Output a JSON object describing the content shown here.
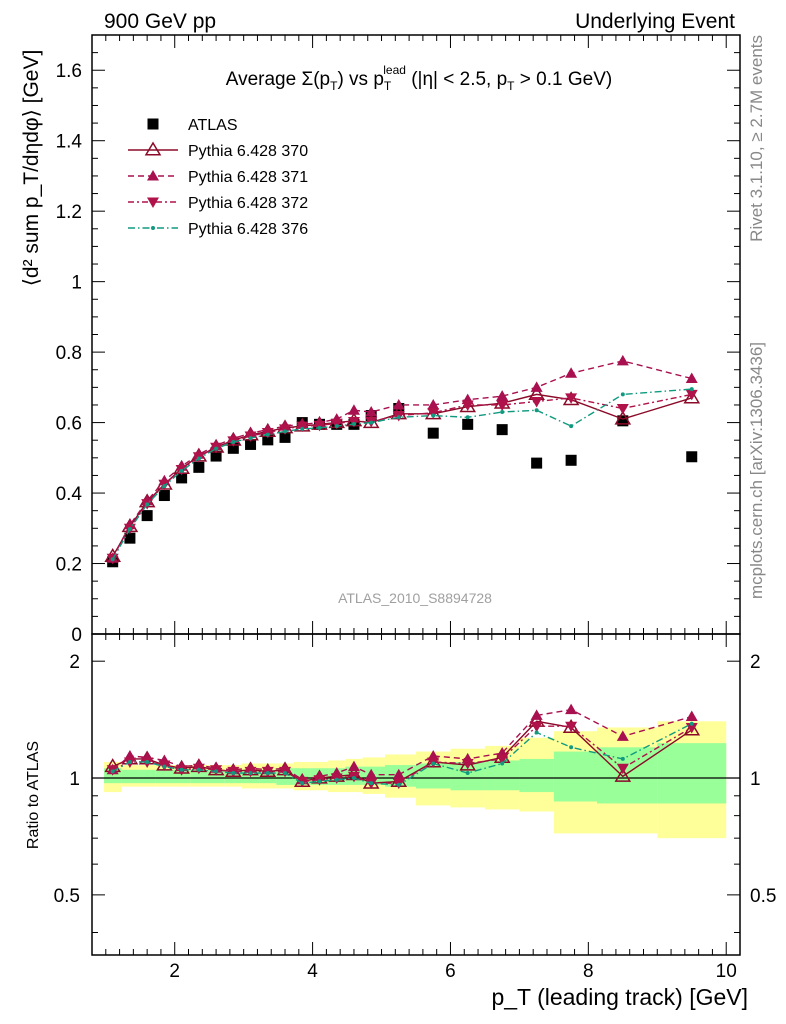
{
  "header": {
    "left": "900 GeV pp",
    "right": "Underlying Event"
  },
  "side": {
    "rivet": "Rivet 3.1.10, ≥ 2.7M events",
    "mcplots": "mcplots.cern.ch [arXiv:1306.3436]"
  },
  "watermark": "ATLAS_2010_S8894728",
  "title": {
    "prefix": "Average ",
    "sigma": "Σ(p",
    "sub_t": "T",
    "mid": ") vs p",
    "sup_lead": "lead",
    "suffix": " (|η| < 2.5, p",
    "suffix_end": " > 0.1 GeV)"
  },
  "ylabel_main": "⟨d² sum p_T/dηdφ⟩ [GeV]",
  "ylabel_ratio": "Ratio to ATLAS",
  "xlabel": "p_T (leading track) [GeV]",
  "colors": {
    "data": "#000000",
    "p370": "#8b0a28",
    "p371": "#a8104f",
    "p372": "#b0124a",
    "p376": "#119a80",
    "band_inner": "#99ff99",
    "band_outer": "#ffff99"
  },
  "chart_data": {
    "type": "scatter",
    "x": [
      1.1,
      1.35,
      1.6,
      1.85,
      2.1,
      2.35,
      2.6,
      2.85,
      3.1,
      3.35,
      3.6,
      3.85,
      4.1,
      4.35,
      4.6,
      4.85,
      5.25,
      5.75,
      6.25,
      6.75,
      7.25,
      7.75,
      8.5,
      9.5
    ],
    "xlim": [
      0.8,
      10.2
    ],
    "xticks": [
      2,
      4,
      6,
      8,
      10
    ],
    "main": {
      "ylim": [
        0,
        1.7
      ],
      "yticks": [
        0,
        0.2,
        0.4,
        0.6,
        0.8,
        1,
        1.2,
        1.4,
        1.6
      ]
    },
    "ratio": {
      "ylim": [
        0.35,
        2.35
      ],
      "yticks": [
        0.5,
        1,
        2
      ]
    },
    "series": [
      {
        "name": "ATLAS",
        "key": "data",
        "marker": "square",
        "values": [
          0.205,
          0.272,
          0.336,
          0.393,
          0.443,
          0.473,
          0.505,
          0.527,
          0.538,
          0.551,
          0.558,
          0.6,
          0.595,
          0.595,
          0.595,
          0.62,
          0.64,
          0.57,
          0.595,
          0.58,
          0.485,
          0.493,
          0.605,
          0.503
        ]
      },
      {
        "name": "Pythia 6.428 370",
        "key": "p370",
        "marker": "triangle-up-open",
        "dash": "",
        "values": [
          0.22,
          0.305,
          0.375,
          0.425,
          0.47,
          0.505,
          0.53,
          0.55,
          0.565,
          0.575,
          0.585,
          0.59,
          0.595,
          0.6,
          0.605,
          0.6,
          0.625,
          0.625,
          0.645,
          0.655,
          0.68,
          0.665,
          0.61,
          0.67
        ],
        "ratio": [
          1.07,
          1.12,
          1.12,
          1.08,
          1.06,
          1.07,
          1.05,
          1.04,
          1.05,
          1.04,
          1.05,
          0.98,
          1.0,
          1.01,
          1.02,
          0.97,
          0.98,
          1.1,
          1.08,
          1.13,
          1.4,
          1.35,
          1.01,
          1.33
        ]
      },
      {
        "name": "Pythia 6.428 371",
        "key": "p371",
        "marker": "triangle-up",
        "dash": "6,4",
        "values": [
          0.215,
          0.31,
          0.378,
          0.435,
          0.476,
          0.51,
          0.535,
          0.555,
          0.57,
          0.58,
          0.59,
          0.595,
          0.6,
          0.61,
          0.635,
          0.63,
          0.65,
          0.65,
          0.665,
          0.675,
          0.7,
          0.74,
          0.775,
          0.725
        ],
        "ratio": [
          1.05,
          1.14,
          1.13,
          1.11,
          1.07,
          1.08,
          1.06,
          1.05,
          1.06,
          1.05,
          1.06,
          0.99,
          1.01,
          1.03,
          1.07,
          1.02,
          1.02,
          1.14,
          1.12,
          1.16,
          1.45,
          1.5,
          1.28,
          1.44
        ]
      },
      {
        "name": "Pythia 6.428 372",
        "key": "p372",
        "marker": "triangle-down",
        "dash": "6,3,2,3",
        "values": [
          0.215,
          0.3,
          0.37,
          0.425,
          0.467,
          0.503,
          0.53,
          0.548,
          0.562,
          0.572,
          0.582,
          0.59,
          0.592,
          0.598,
          0.603,
          0.603,
          0.62,
          0.628,
          0.65,
          0.65,
          0.66,
          0.67,
          0.64,
          0.68
        ],
        "ratio": [
          1.05,
          1.1,
          1.1,
          1.08,
          1.05,
          1.06,
          1.05,
          1.04,
          1.04,
          1.04,
          1.04,
          0.98,
          0.99,
          1.0,
          1.01,
          0.97,
          0.97,
          1.1,
          1.09,
          1.12,
          1.36,
          1.36,
          1.06,
          1.35
        ]
      },
      {
        "name": "Pythia 6.428 376",
        "key": "p376",
        "marker": "dot",
        "dash": "7,3,1.5,3",
        "values": [
          0.212,
          0.298,
          0.368,
          0.42,
          0.463,
          0.498,
          0.526,
          0.545,
          0.556,
          0.566,
          0.575,
          0.582,
          0.585,
          0.59,
          0.596,
          0.6,
          0.615,
          0.62,
          0.615,
          0.63,
          0.635,
          0.59,
          0.68,
          0.695
        ],
        "ratio": [
          1.04,
          1.1,
          1.1,
          1.07,
          1.05,
          1.05,
          1.04,
          1.03,
          1.03,
          1.03,
          1.03,
          0.97,
          0.98,
          0.99,
          1.0,
          0.97,
          0.96,
          1.09,
          1.03,
          1.09,
          1.31,
          1.2,
          1.12,
          1.38
        ]
      }
    ],
    "ratio_band_outer": [
      [
        0.92,
        1.1
      ],
      [
        0.95,
        1.08
      ],
      [
        0.95,
        1.08
      ],
      [
        0.95,
        1.08
      ],
      [
        0.95,
        1.08
      ],
      [
        0.95,
        1.08
      ],
      [
        0.95,
        1.08
      ],
      [
        0.95,
        1.08
      ],
      [
        0.94,
        1.09
      ],
      [
        0.94,
        1.09
      ],
      [
        0.94,
        1.09
      ],
      [
        0.93,
        1.1
      ],
      [
        0.93,
        1.1
      ],
      [
        0.92,
        1.11
      ],
      [
        0.92,
        1.12
      ],
      [
        0.91,
        1.13
      ],
      [
        0.89,
        1.15
      ],
      [
        0.85,
        1.17
      ],
      [
        0.84,
        1.19
      ],
      [
        0.83,
        1.21
      ],
      [
        0.82,
        1.27
      ],
      [
        0.72,
        1.32
      ],
      [
        0.72,
        1.35
      ],
      [
        0.7,
        1.4
      ]
    ],
    "ratio_band_inner": [
      [
        0.97,
        1.06
      ],
      [
        0.97,
        1.05
      ],
      [
        0.97,
        1.05
      ],
      [
        0.97,
        1.05
      ],
      [
        0.97,
        1.05
      ],
      [
        0.97,
        1.05
      ],
      [
        0.97,
        1.05
      ],
      [
        0.97,
        1.05
      ],
      [
        0.97,
        1.05
      ],
      [
        0.97,
        1.05
      ],
      [
        0.96,
        1.06
      ],
      [
        0.96,
        1.06
      ],
      [
        0.96,
        1.06
      ],
      [
        0.96,
        1.06
      ],
      [
        0.96,
        1.07
      ],
      [
        0.96,
        1.07
      ],
      [
        0.95,
        1.08
      ],
      [
        0.94,
        1.09
      ],
      [
        0.93,
        1.1
      ],
      [
        0.93,
        1.11
      ],
      [
        0.92,
        1.12
      ],
      [
        0.87,
        1.17
      ],
      [
        0.86,
        1.2
      ],
      [
        0.86,
        1.23
      ]
    ]
  }
}
